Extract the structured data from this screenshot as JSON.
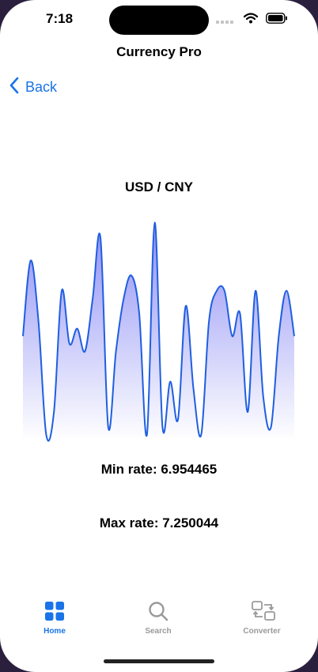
{
  "status_bar": {
    "time": "7:18"
  },
  "nav": {
    "title": "Currency Pro",
    "back_label": "Back"
  },
  "chart_data": {
    "type": "area",
    "title": "USD / CNY",
    "xlabel": "",
    "ylabel": "",
    "ylim": [
      6.954465,
      7.250044
    ],
    "y": [
      7.09,
      7.19,
      7.11,
      6.96,
      6.99,
      7.15,
      7.08,
      7.1,
      7.07,
      7.14,
      7.22,
      6.97,
      7.07,
      7.14,
      7.17,
      7.12,
      6.96,
      7.24,
      6.97,
      7.03,
      6.98,
      7.13,
      7.02,
      6.96,
      7.11,
      7.15,
      7.15,
      7.09,
      7.12,
      6.99,
      7.15,
      7.01,
      6.97,
      7.09,
      7.15,
      7.09
    ],
    "line_color": "#1f5fe0",
    "fill_top_color": "#8f8ff5",
    "fill_bottom_color": "#ffffff",
    "grid": false,
    "legend": "none"
  },
  "stats": {
    "min_label": "Min rate: 6.954465",
    "max_label": "Max rate: 7.250044"
  },
  "tabs": [
    {
      "label": "Home",
      "icon": "grid-icon",
      "active": true
    },
    {
      "label": "Search",
      "icon": "magnifier-icon",
      "active": false
    },
    {
      "label": "Converter",
      "icon": "converter-icon",
      "active": false
    }
  ],
  "colors": {
    "accent": "#1a73e8",
    "inactive": "#9a9a9a"
  }
}
